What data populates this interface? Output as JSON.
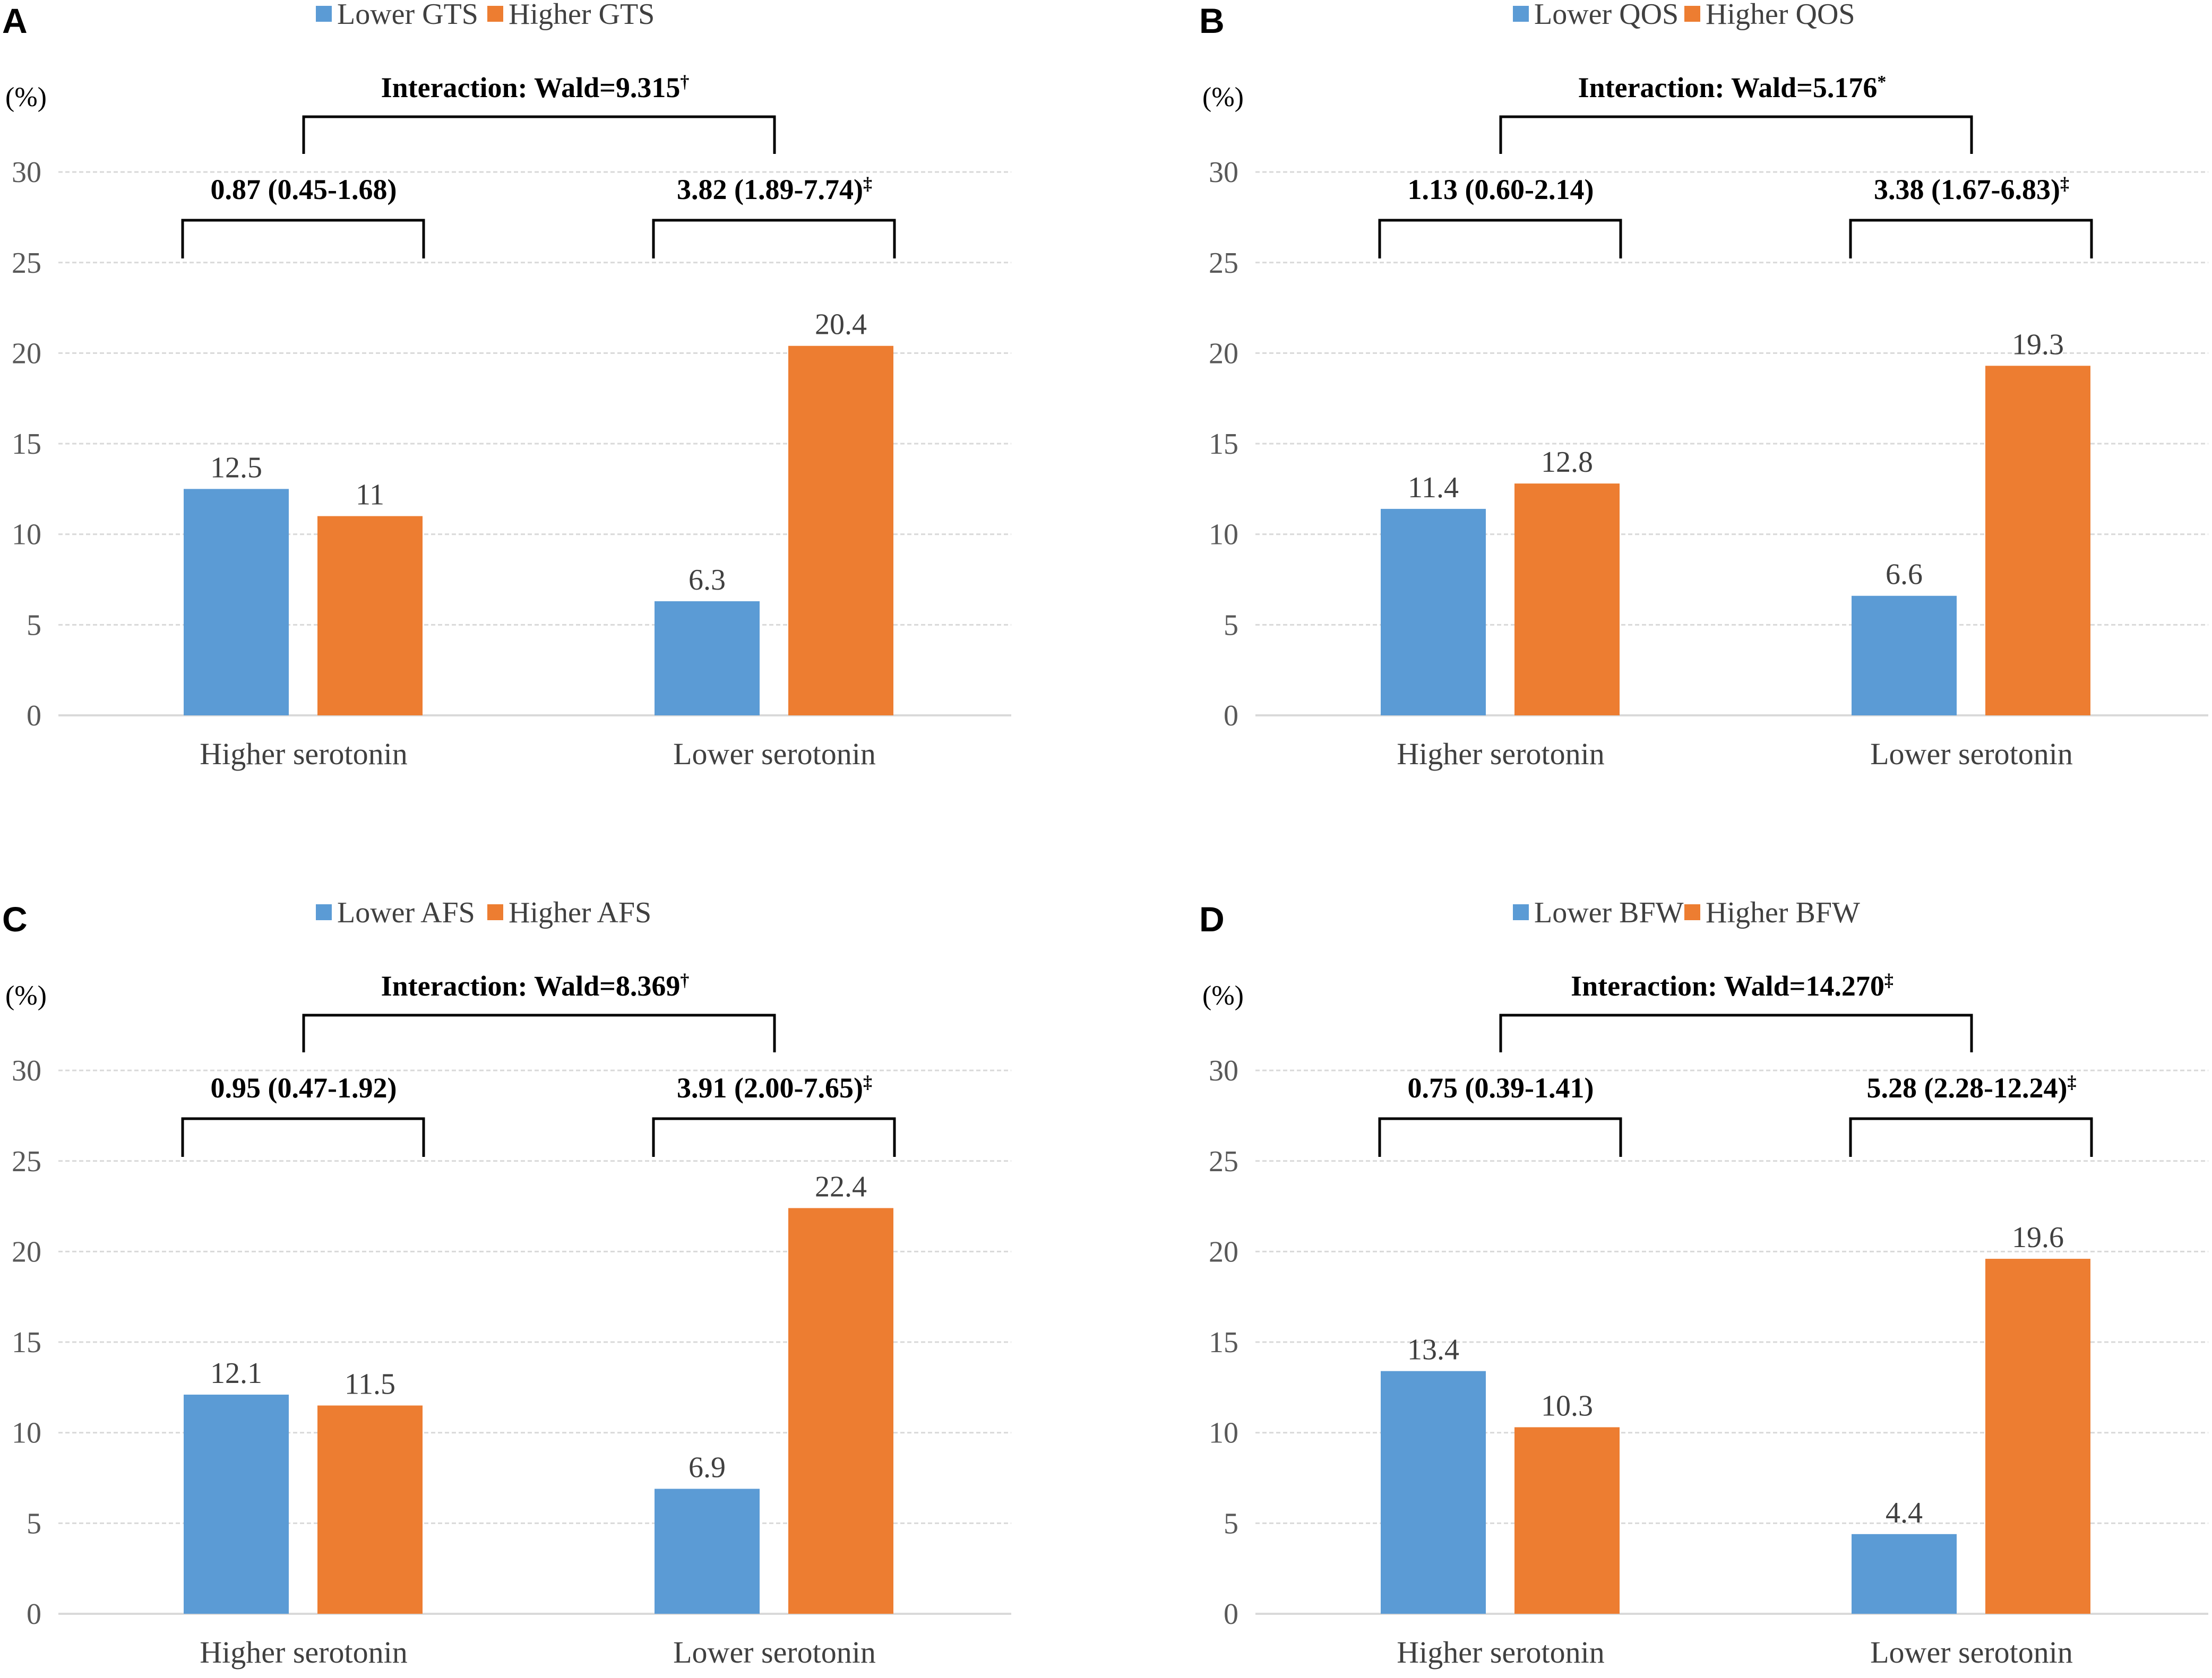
{
  "figure": {
    "panels": [
      {
        "letter": "A",
        "interaction": "Interaction:  Wald=9.315",
        "interaction_mark": "†"
      },
      {
        "letter": "B",
        "interaction": "Interaction:  Wald=5.176",
        "interaction_mark": "*"
      },
      {
        "letter": "C",
        "interaction": "Interaction:  Wald=8.369",
        "interaction_mark": "†"
      },
      {
        "letter": "D",
        "interaction": "Interaction:  Wald=14.270",
        "interaction_mark": "‡"
      }
    ]
  },
  "colors": {
    "lower": "#5B9BD5",
    "higher": "#ED7D31",
    "grid": "#d9d9d9",
    "text": "#000000",
    "axis_text": "#595959"
  },
  "chart_data": [
    {
      "type": "bar",
      "title": "A",
      "categories": [
        "Higher serotonin",
        "Lower serotonin"
      ],
      "series": [
        {
          "name": "Lower GTS",
          "values": [
            12.5,
            6.3
          ]
        },
        {
          "name": "Higher GTS",
          "values": [
            11,
            20.4
          ]
        }
      ],
      "value_labels": [
        [
          "12.5",
          "6.3"
        ],
        [
          "11",
          "20.4"
        ]
      ],
      "or_labels": [
        "0.87 (0.45-1.68)",
        "3.82 (1.89-7.74)"
      ],
      "or_marks": [
        "",
        "‡"
      ],
      "ylabel": "(%)",
      "yticks": [
        0,
        5,
        10,
        15,
        20,
        25,
        30
      ],
      "ylim": [
        0,
        30
      ],
      "legend": "top-center"
    },
    {
      "type": "bar",
      "title": "B",
      "categories": [
        "Higher serotonin",
        "Lower serotonin"
      ],
      "series": [
        {
          "name": "Lower QOS",
          "values": [
            11.4,
            6.6
          ]
        },
        {
          "name": "Higher QOS",
          "values": [
            12.8,
            19.3
          ]
        }
      ],
      "value_labels": [
        [
          "11.4",
          "6.6"
        ],
        [
          "12.8",
          "19.3"
        ]
      ],
      "or_labels": [
        "1.13 (0.60-2.14)",
        "3.38 (1.67-6.83)"
      ],
      "or_marks": [
        "",
        "‡"
      ],
      "ylabel": "(%)",
      "yticks": [
        0,
        5,
        10,
        15,
        20,
        25,
        30
      ],
      "ylim": [
        0,
        30
      ],
      "legend": "top-center"
    },
    {
      "type": "bar",
      "title": "C",
      "categories": [
        "Higher serotonin",
        "Lower serotonin"
      ],
      "series": [
        {
          "name": "Lower AFS",
          "values": [
            12.1,
            6.9
          ]
        },
        {
          "name": "Higher AFS",
          "values": [
            11.5,
            22.4
          ]
        }
      ],
      "value_labels": [
        [
          "12.1",
          "6.9"
        ],
        [
          "11.5",
          "22.4"
        ]
      ],
      "or_labels": [
        "0.95 (0.47-1.92)",
        "3.91 (2.00-7.65)"
      ],
      "or_marks": [
        "",
        "‡"
      ],
      "ylabel": "(%)",
      "yticks": [
        0,
        5,
        10,
        15,
        20,
        25,
        30
      ],
      "ylim": [
        0,
        30
      ],
      "legend": "top-center"
    },
    {
      "type": "bar",
      "title": "D",
      "categories": [
        "Higher serotonin",
        "Lower serotonin"
      ],
      "series": [
        {
          "name": "Lower BFW",
          "values": [
            13.4,
            4.4
          ]
        },
        {
          "name": "Higher BFW",
          "values": [
            10.3,
            19.6
          ]
        }
      ],
      "value_labels": [
        [
          "13.4",
          "4.4"
        ],
        [
          "10.3",
          "19.6"
        ]
      ],
      "or_labels": [
        "0.75 (0.39-1.41)",
        "5.28 (2.28-12.24)"
      ],
      "or_marks": [
        "",
        "‡"
      ],
      "ylabel": "(%)",
      "yticks": [
        0,
        5,
        10,
        15,
        20,
        25,
        30
      ],
      "ylim": [
        0,
        30
      ],
      "legend": "top-center"
    }
  ]
}
